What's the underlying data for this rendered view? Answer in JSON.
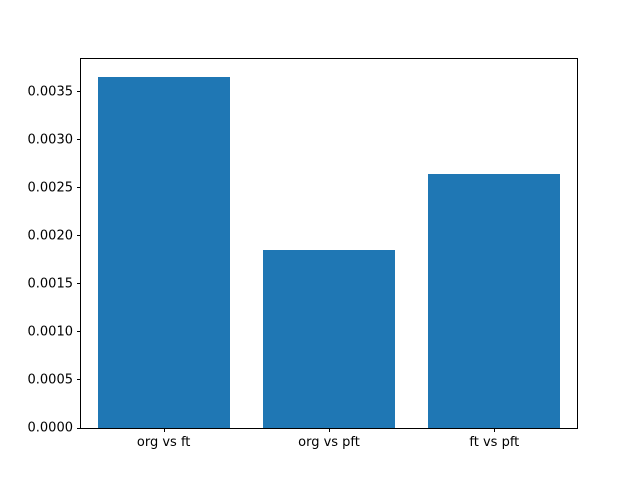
{
  "chart_data": {
    "type": "bar",
    "categories": [
      "org vs ft",
      "org vs pft",
      "ft vs pft"
    ],
    "values": [
      0.00365,
      0.00185,
      0.00264
    ],
    "title": "",
    "xlabel": "",
    "ylabel": "",
    "ylim": [
      0,
      0.00384
    ],
    "yticks": [
      0.0,
      0.0005,
      0.001,
      0.0015,
      0.002,
      0.0025,
      0.003,
      0.0035
    ],
    "ytick_labels": [
      "0.0000",
      "0.0005",
      "0.0010",
      "0.0015",
      "0.0020",
      "0.0025",
      "0.0030",
      "0.0035"
    ],
    "bar_color": "#1f77b4",
    "grid": false,
    "legend_position": "none",
    "bar_width_fraction": 0.8
  }
}
